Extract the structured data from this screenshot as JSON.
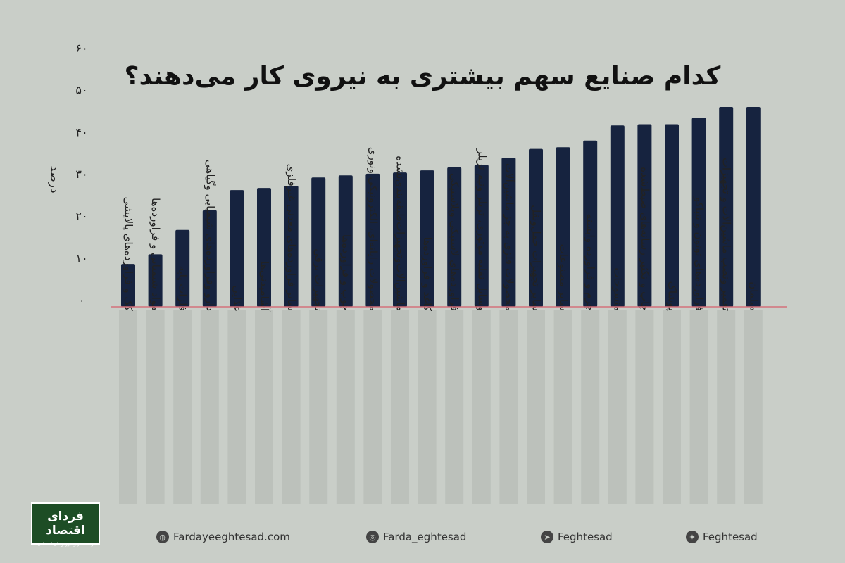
{
  "page": {
    "title": "کدام صنایع سهم بیشتری به نیروی کار می‌دهند؟",
    "logo": {
      "main": "فردای اقتصاد",
      "sub": "رسانه مرجع بورس‌های اقتصادی"
    },
    "footer": [
      {
        "icon": "globe-icon",
        "text": "Fardayeeghtesad.com"
      },
      {
        "icon": "instagram-icon",
        "text": "Farda_eghtesad"
      },
      {
        "icon": "telegram-icon",
        "text": "Feghtesad"
      },
      {
        "icon": "twitter-icon",
        "text": "Feghtesad"
      }
    ]
  },
  "chart_data": {
    "type": "bar",
    "ylabel": "درصد",
    "ylim": [
      0,
      60
    ],
    "yticks": [
      {
        "value": 0,
        "label": "۰"
      },
      {
        "value": 10,
        "label": "۱۰"
      },
      {
        "value": 20,
        "label": "۲۰"
      },
      {
        "value": 30,
        "label": "۳۰"
      },
      {
        "value": 40,
        "label": "۴۰"
      },
      {
        "value": 50,
        "label": "۵۰"
      },
      {
        "value": 60,
        "label": "۶۰"
      }
    ],
    "grid": false,
    "categories": [
      "کک و فراورده‌های پالایشی",
      "مواد شیمیایی و فراورده‌ها",
      "فلزات پایه",
      "دارو وفراورده‌های شیمیایی وگیاهی",
      "غذایی",
      "آشامیدنی‌ها",
      "سایر فراورده‌های معدنی غیرفلزی",
      "تجهیزات برقی",
      "چوب و فراورده‌ها",
      "محصولات رایانه‌ای، الکترونیکی ونوری",
      "ماشین‌آلات‌وتجهیزات‌طبقه‌بندی‌نشده",
      "کاغذ و فراورده‌ها",
      "فراورده‌های لاستیکی وپلاستیکی",
      "وسایل نقلیه موتوری، تریلر ونیم تریلر",
      "محصولات فلزی به جز ماشین‌آلات",
      "سایر تجهیزات حمل‌ونقل",
      "سایر مصنوعات",
      "چرم و فراورده وابسته",
      "منسوجات",
      "چاپ و تکثیر رسانه‌های ضبط‌شده",
      "پوشاک",
      "فراورده‌های توتون و تنباکو",
      "تعمیر ونصب ماشین‌آلات و تجهیزات",
      "مبلمان"
    ],
    "values": [
      10.2,
      12.5,
      18.3,
      23.0,
      27.8,
      28.3,
      28.8,
      30.8,
      31.3,
      31.7,
      32.0,
      32.5,
      33.2,
      33.8,
      35.5,
      37.6,
      38.0,
      39.6,
      43.2,
      43.5,
      43.5,
      45.0,
      47.6,
      47.6
    ],
    "bar_color": "#16233f",
    "baseline_color": "#d4707a",
    "background": "#c9cec8"
  }
}
